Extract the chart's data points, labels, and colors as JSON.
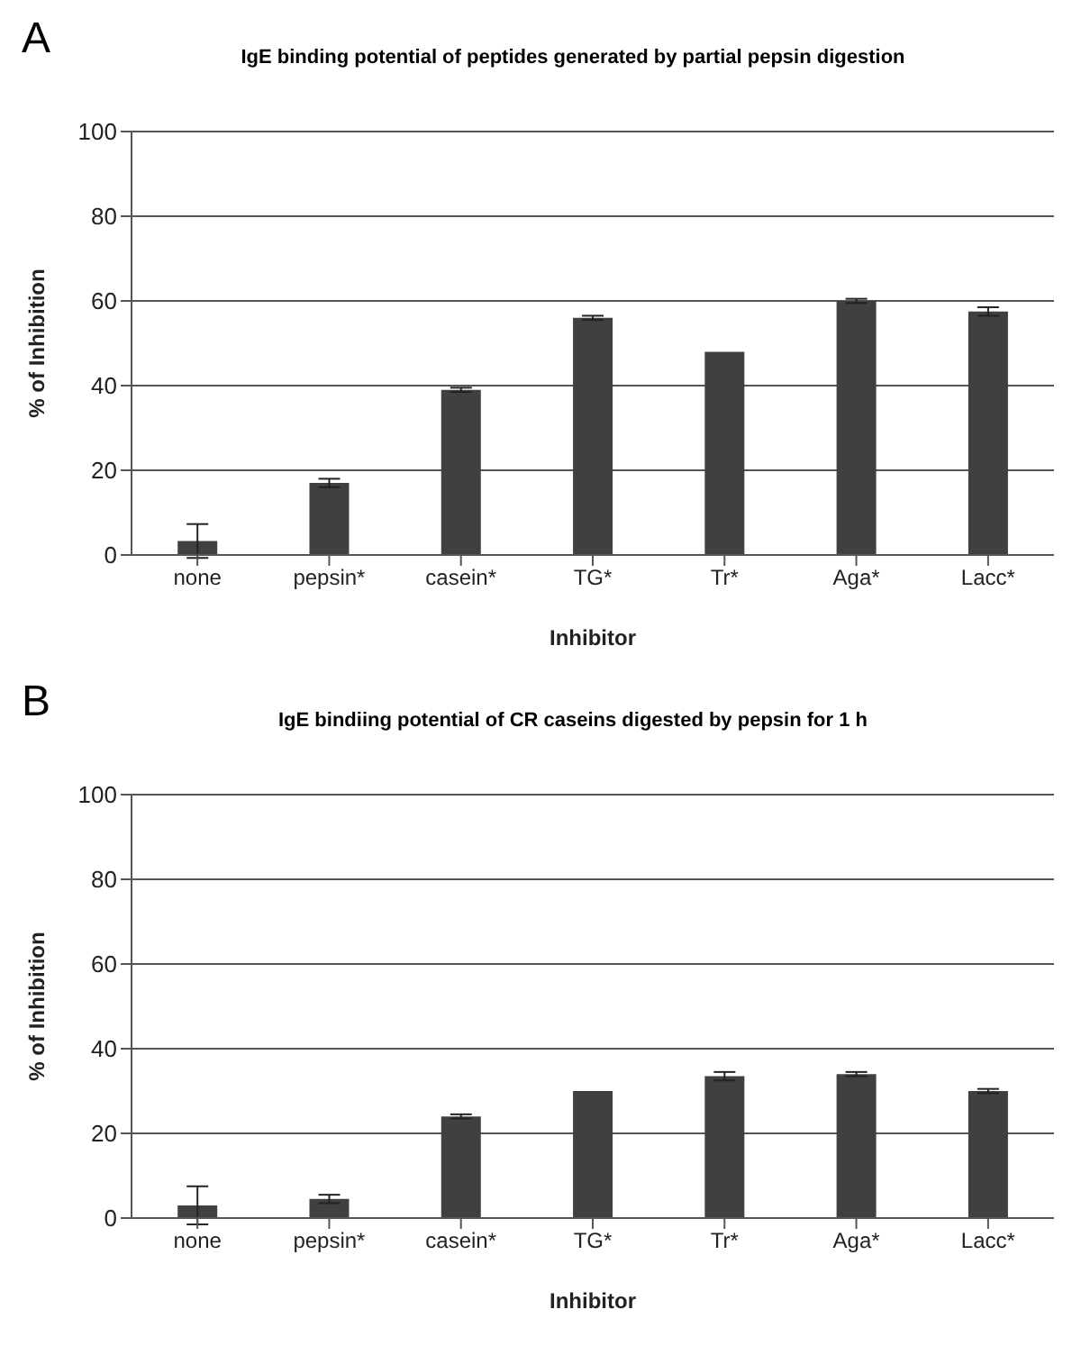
{
  "chart_data": [
    {
      "type": "bar",
      "title": "IgE binding potential of peptides generated by partial pepsin digestion",
      "xlabel": "Inhibitor",
      "ylabel": "% of Inhibition",
      "annotations": [
        "A"
      ],
      "categories": [
        "none",
        "pepsin*",
        "casein*",
        "TG*",
        "Tr*",
        "Aga*",
        "Lacc*"
      ],
      "values": [
        3.3,
        17,
        39,
        56,
        48,
        60,
        57.5
      ],
      "errors": [
        4,
        1,
        0.5,
        0.5,
        null,
        0.5,
        1
      ],
      "color": "#404040",
      "ylim": [
        0,
        100
      ],
      "yticks": [
        0,
        20,
        40,
        60,
        80,
        100
      ],
      "grid": "y"
    },
    {
      "type": "bar",
      "title": "IgE bindiing potential of CR caseins digested by pepsin for 1 h",
      "xlabel": "Inhibitor",
      "ylabel": "% of Inhibition",
      "annotations": [
        "B"
      ],
      "categories": [
        "none",
        "pepsin*",
        "casein*",
        "TG*",
        "Tr*",
        "Aga*",
        "Lacc*"
      ],
      "values": [
        3,
        4.5,
        24,
        30,
        33.5,
        34,
        30
      ],
      "errors": [
        4.5,
        1,
        0.5,
        null,
        1,
        0.5,
        0.5
      ],
      "color": "#404040",
      "ylim": [
        0,
        100
      ],
      "yticks": [
        0,
        20,
        40,
        60,
        80,
        100
      ],
      "grid": "y"
    }
  ]
}
